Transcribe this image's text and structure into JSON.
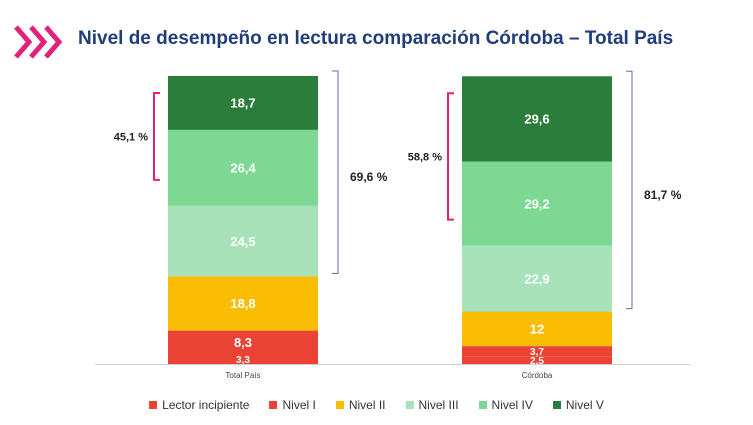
{
  "header": {
    "title": "Nivel de desempeño en lectura comparación Córdoba  – Total País"
  },
  "colors": {
    "chevron": "#e0227c",
    "title": "#1f3e7a",
    "bracket_left": "#e0227c",
    "bracket_right": "#7b5ea7"
  },
  "chart_data": {
    "type": "bar",
    "stacked": true,
    "categories": [
      "Total País",
      "Córdoba"
    ],
    "series": [
      {
        "name": "Lector incipiente",
        "color": "#ea4335",
        "values": [
          3.3,
          2.5
        ],
        "labels": [
          "3,3",
          "2,5"
        ]
      },
      {
        "name": "Nivel I",
        "color": "#ea4335",
        "values": [
          8.3,
          3.7
        ],
        "labels": [
          "8,3",
          "3,7"
        ]
      },
      {
        "name": "Nivel II",
        "color": "#fbbc04",
        "values": [
          18.8,
          12
        ],
        "labels": [
          "18,8",
          "12"
        ]
      },
      {
        "name": "Nivel III",
        "color": "#a8e2b8",
        "values": [
          24.5,
          22.9
        ],
        "labels": [
          "24,5",
          "22,9"
        ]
      },
      {
        "name": "Nivel IV",
        "color": "#7dd894",
        "values": [
          26.4,
          29.2
        ],
        "labels": [
          "26,4",
          "29,2"
        ]
      },
      {
        "name": "Nivel V",
        "color": "#2b7d3b",
        "values": [
          18.7,
          29.6
        ],
        "labels": [
          "18,7",
          "29,6"
        ]
      }
    ],
    "annotations": [
      {
        "category": "Total País",
        "label": "45,1 %",
        "from_series": 4,
        "to_series": 5,
        "side": "left"
      },
      {
        "category": "Total País",
        "label": "69,6 %",
        "from_series": 3,
        "to_series": 5,
        "side": "right"
      },
      {
        "category": "Córdoba",
        "label": "58,8 %",
        "from_series": 4,
        "to_series": 5,
        "side": "left"
      },
      {
        "category": "Córdoba",
        "label": "81,7 %",
        "from_series": 3,
        "to_series": 5,
        "side": "right"
      }
    ],
    "ylim": [
      0,
      100
    ],
    "grid": false,
    "legend": "bottom",
    "title": "",
    "xlabel": "",
    "ylabel": ""
  }
}
